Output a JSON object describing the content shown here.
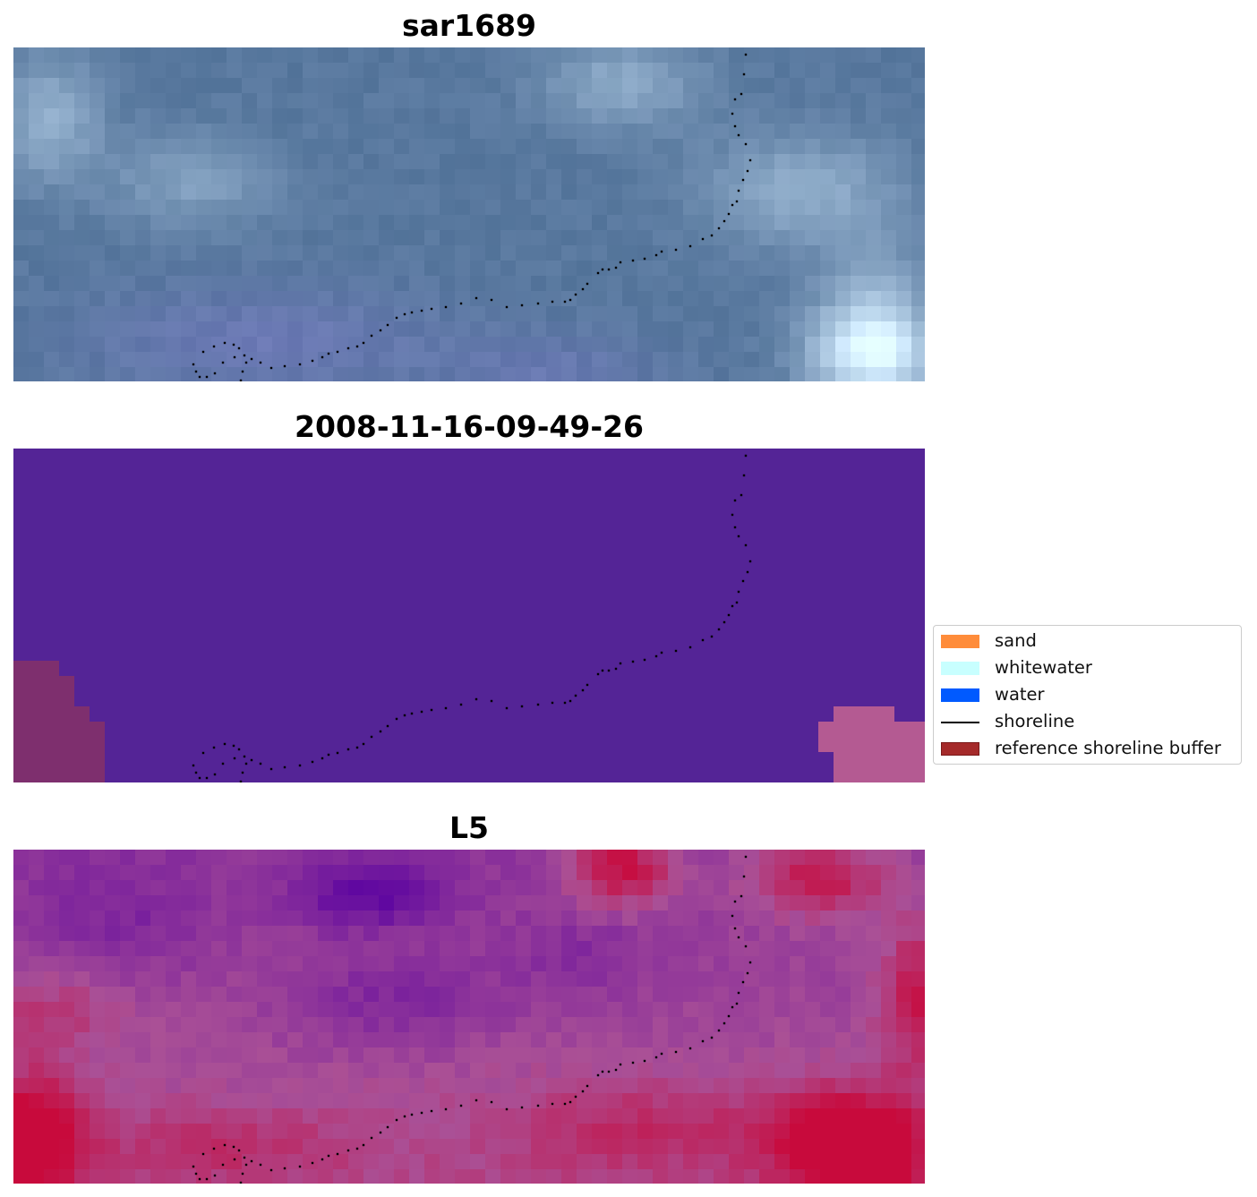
{
  "panels": [
    {
      "title": "sar1689",
      "palette": "rgb"
    },
    {
      "title": "2008-11-16-09-49-26",
      "palette": "classified"
    },
    {
      "title": "L5",
      "palette": "index"
    }
  ],
  "legend": {
    "items": [
      {
        "label": "sand",
        "color": "#ff8c3a",
        "kind": "patch"
      },
      {
        "label": "whitewater",
        "color": "#c8ffff",
        "kind": "patch"
      },
      {
        "label": "water",
        "color": "#005aff",
        "kind": "patch"
      },
      {
        "label": "shoreline",
        "color": "#000000",
        "kind": "line"
      },
      {
        "label": "reference shoreline buffer",
        "color": "#a52a2a",
        "kind": "patch"
      }
    ]
  },
  "colors": {
    "classified_background": "#542496",
    "buffer_left": "#7e2f6e",
    "buffer_right": "#b45a92",
    "shoreline_dots": "#000000"
  }
}
